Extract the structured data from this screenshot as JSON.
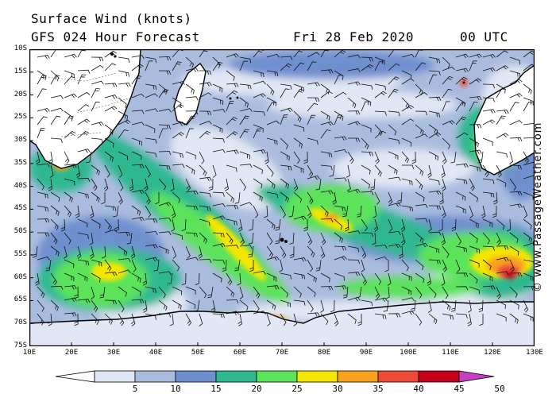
{
  "header": {
    "title": "Surface Wind (knots)",
    "forecast": "GFS 024 Hour Forecast",
    "date": "Fri 28 Feb 2020",
    "time": "00 UTC"
  },
  "credit": "© www.PassageWeather.com",
  "latitude_labels": [
    "10S",
    "15S",
    "20S",
    "25S",
    "30S",
    "35S",
    "40S",
    "45S",
    "50S",
    "55S",
    "60S",
    "65S",
    "70S",
    "75S"
  ],
  "longitude_labels": [
    "10E",
    "20E",
    "30E",
    "40E",
    "50E",
    "60E",
    "70E",
    "80E",
    "90E",
    "100E",
    "110E",
    "120E",
    "130E"
  ],
  "legend": {
    "labels": [
      "5",
      "10",
      "15",
      "20",
      "25",
      "30",
      "35",
      "40",
      "45",
      "50"
    ],
    "colors": [
      "#e1e7f4",
      "#aabcde",
      "#6f8fcf",
      "#2fb890",
      "#5ce35a",
      "#f4e600",
      "#f8a21b",
      "#ef4a38",
      "#c6001a",
      "#c43fc2"
    ]
  }
}
